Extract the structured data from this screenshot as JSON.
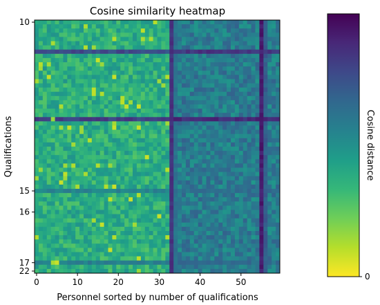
{
  "chart_data": {
    "type": "heatmap",
    "title": "Cosine similarity heatmap",
    "xlabel": "Personnel sorted by number of qualifications",
    "ylabel": "Qualifications",
    "x_ticks": [
      0,
      10,
      20,
      30,
      40,
      50
    ],
    "x_range": [
      0,
      59
    ],
    "y_tick_labels": [
      {
        "label": "10",
        "row": 0
      },
      {
        "label": "15",
        "row": 40
      },
      {
        "label": "16",
        "row": 45
      },
      {
        "label": "17",
        "row": 57
      },
      {
        "label": "22",
        "row": 59
      }
    ],
    "rows": 60,
    "cols": 60,
    "colorbar": {
      "label": "Cosine distance",
      "tick_labels": [
        {
          "label": "0",
          "value": 0
        }
      ],
      "colormap": "viridis-reversed",
      "colors": [
        "#fde725",
        "#b5de2b",
        "#6ece58",
        "#35b779",
        "#1f9e89",
        "#26828e",
        "#31688e",
        "#3e4989",
        "#482878",
        "#440154"
      ]
    },
    "matrix_description": "cosine distances mostly 0.2-0.6; darker vertical bands at personnel ~33 and ~55, darker horizontal bands at qualification rows ~7 and ~23",
    "base_level": 0.38,
    "column_bands": [
      {
        "col": 33,
        "value": 0.85
      },
      {
        "col": 34,
        "value": 0.62
      },
      {
        "col": 55,
        "value": 0.92
      },
      {
        "col": 56,
        "value": 0.7
      }
    ],
    "column_region": {
      "from": 34,
      "to": 59,
      "value": 0.58
    },
    "row_bands": [
      {
        "row": 7,
        "value": 0.82
      },
      {
        "row": 23,
        "value": 0.86
      },
      {
        "row": 40,
        "value": 0.6
      },
      {
        "row": 57,
        "value": 0.62
      }
    ]
  }
}
